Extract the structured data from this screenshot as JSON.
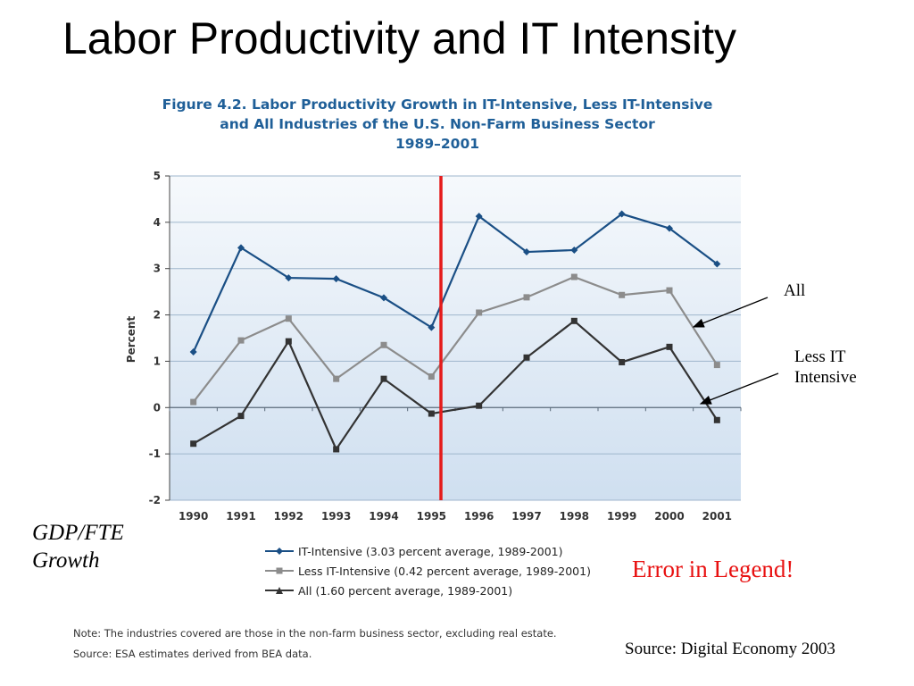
{
  "slide": {
    "title": "Labor Productivity and IT Intensity",
    "figure_title_lines": [
      "Figure 4.2.   Labor Productivity Growth in IT-Intensive, Less IT-Intensive",
      "and All Industries of the U.S. Non-Farm Business Sector",
      "1989–2001"
    ],
    "side_label_lines": [
      "GDP/FTE",
      "Growth"
    ],
    "annotations": {
      "all": "All",
      "less_it_lines": [
        "Less IT",
        "Intensive"
      ],
      "error": "Error in Legend!"
    },
    "notes": [
      "Note: The industries covered are those in the non-farm business sector, excluding real estate.",
      "Source: ESA estimates derived from BEA data."
    ],
    "source": "Source: Digital Economy 2003",
    "marker_line_color": "#e51b1b"
  },
  "chart_data": {
    "type": "line",
    "title": "Figure 4.2. Labor Productivity Growth in IT-Intensive, Less IT-Intensive and All Industries of the U.S. Non-Farm Business Sector 1989–2001",
    "ylabel": "Percent",
    "xlabel": "",
    "ylim": [
      -2,
      5
    ],
    "yticks": [
      "-2",
      "-1",
      "0",
      "1",
      "2",
      "3",
      "4",
      "5"
    ],
    "categories": [
      "1990",
      "1991",
      "1992",
      "1993",
      "1994",
      "1995",
      "1996",
      "1997",
      "1998",
      "1999",
      "2000",
      "2001"
    ],
    "vertical_marker_at": 1995.2,
    "grid": true,
    "legend_position": "below",
    "series": [
      {
        "name": "IT-Intensive (3.03 percent average, 1989-2001)",
        "color": "#1a4f85",
        "marker": "diamond",
        "values": [
          1.2,
          3.45,
          2.8,
          2.78,
          2.37,
          1.73,
          4.13,
          3.36,
          3.4,
          4.18,
          3.87,
          3.1
        ]
      },
      {
        "name": "Less IT-Intensive (0.42 percent average, 1989-2001)",
        "color": "#8c8c8c",
        "marker": "square",
        "values": [
          0.12,
          1.45,
          1.92,
          0.62,
          1.35,
          0.67,
          2.05,
          2.38,
          2.82,
          2.43,
          2.53,
          0.92
        ]
      },
      {
        "name": "All (1.60 percent average, 1989-2001)",
        "color": "#333333",
        "marker": "triangle",
        "values": [
          -0.78,
          -0.18,
          1.43,
          -0.9,
          0.62,
          -0.13,
          0.04,
          1.08,
          1.87,
          0.98,
          1.31,
          -0.27
        ]
      }
    ]
  }
}
